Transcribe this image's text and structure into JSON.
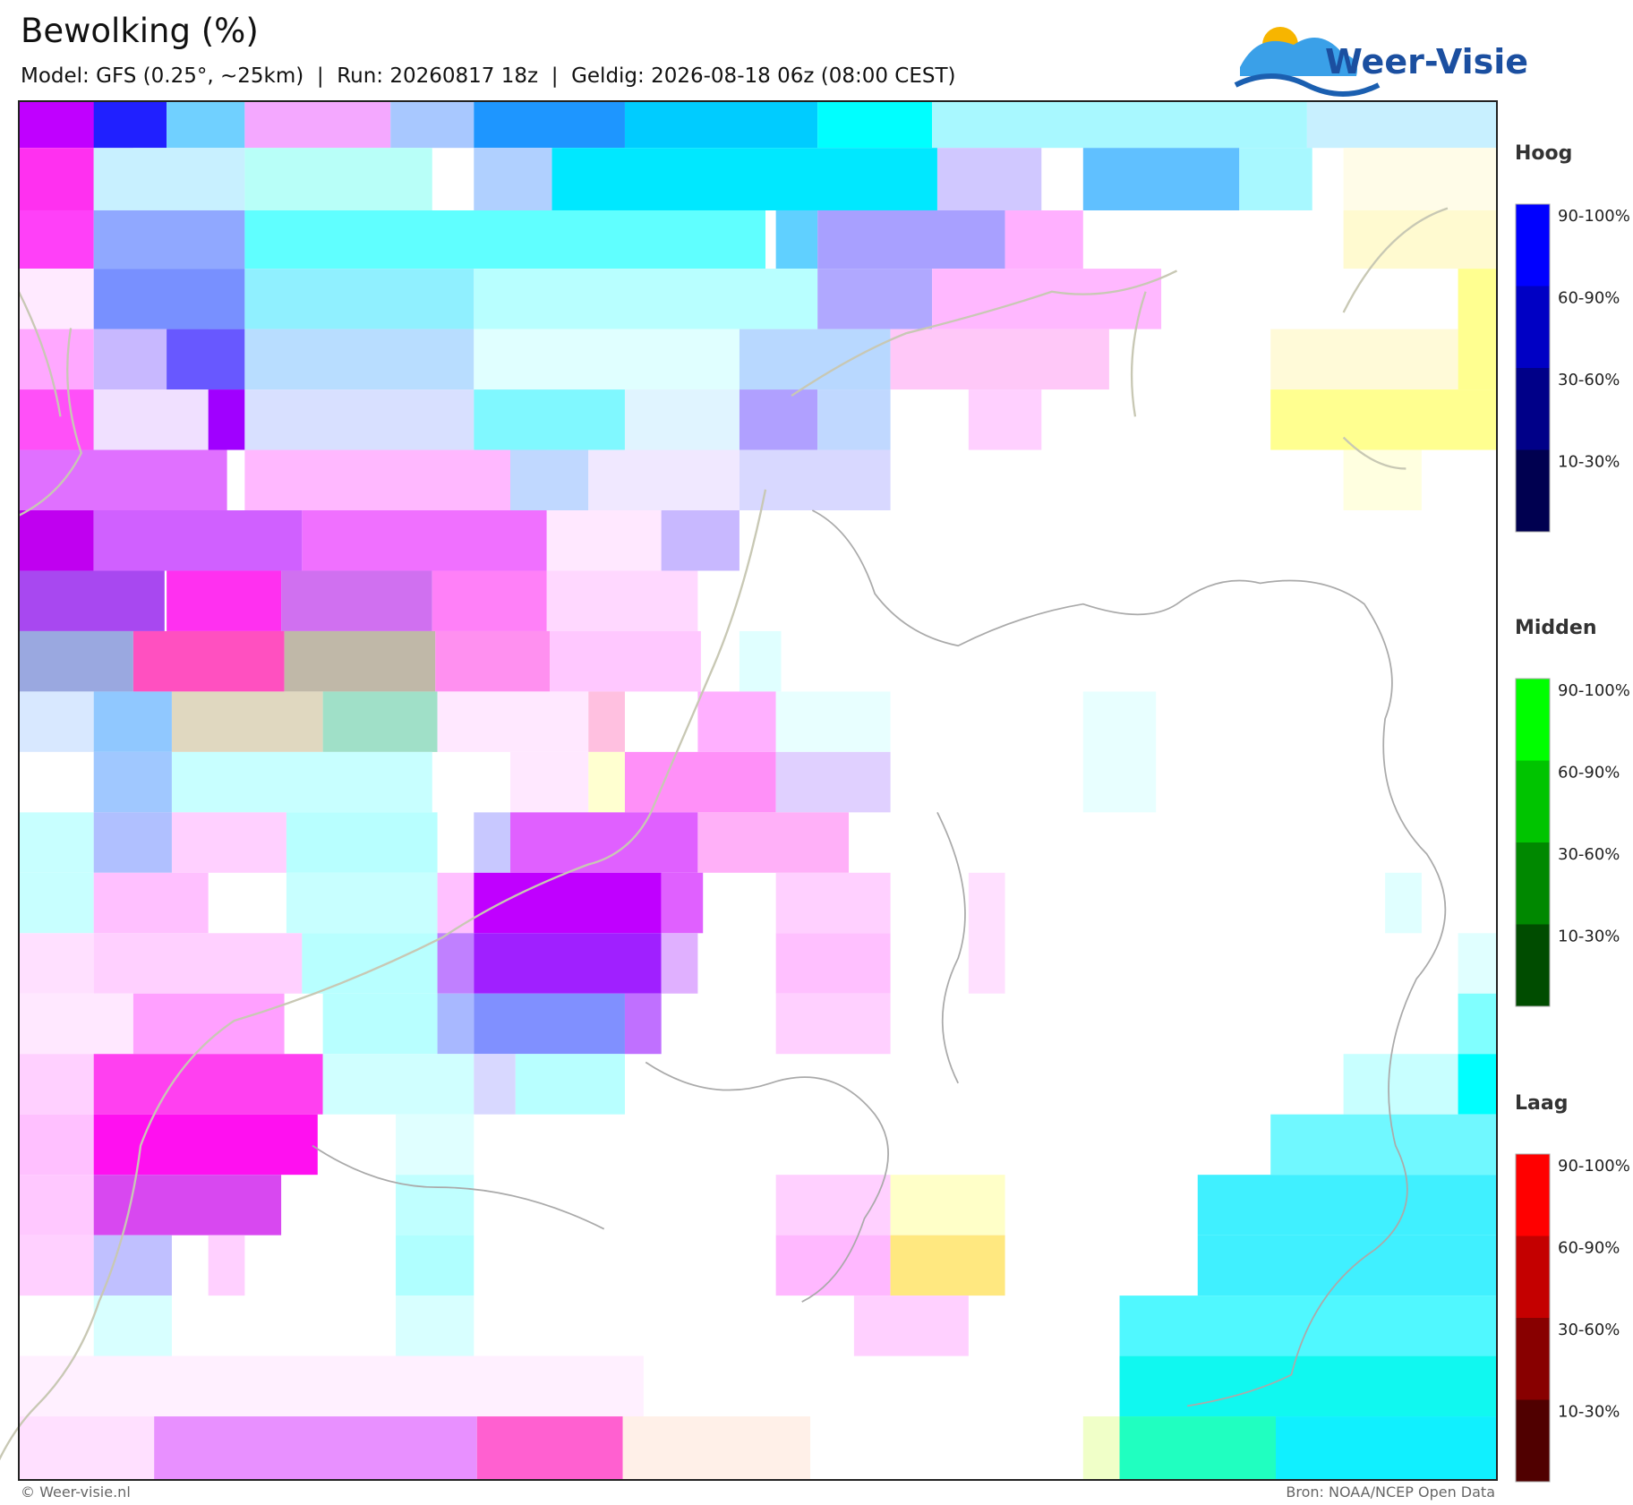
{
  "header": {
    "title": "Bewolking (%)",
    "subtitle": "Model: GFS (0.25°, ~25km)  |  Run: 20260817 18z  |  Geldig: 2026-08-18 06z (08:00 CEST)",
    "logo": "Weer-Visie"
  },
  "legend": [
    {
      "title": "Hoog",
      "items": [
        {
          "label": "90-100%",
          "color": "#0000ff"
        },
        {
          "label": "60-90%",
          "color": "#0000c4"
        },
        {
          "label": "30-60%",
          "color": "#000088"
        },
        {
          "label": "10-30%",
          "color": "#000050"
        }
      ]
    },
    {
      "title": "Midden",
      "items": [
        {
          "label": "90-100%",
          "color": "#00ff00"
        },
        {
          "label": "60-90%",
          "color": "#00c400"
        },
        {
          "label": "30-60%",
          "color": "#008800"
        },
        {
          "label": "10-30%",
          "color": "#004c00"
        }
      ]
    },
    {
      "title": "Laag",
      "items": [
        {
          "label": "90-100%",
          "color": "#ff0000"
        },
        {
          "label": "60-90%",
          "color": "#c40000"
        },
        {
          "label": "30-60%",
          "color": "#880000"
        },
        {
          "label": "10-30%",
          "color": "#500000"
        }
      ]
    }
  ],
  "footer": {
    "left": "© Weer-visie.nl",
    "right": "Bron: NOAA/NCEP Open Data"
  }
}
